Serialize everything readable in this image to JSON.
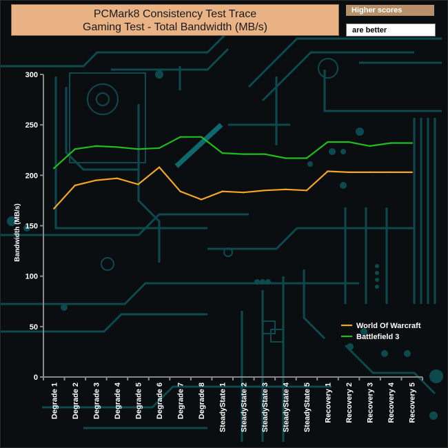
{
  "header": {
    "title_line1": "PCMark8 Consistency Test Trace",
    "title_line2": "Gaming Test - Total Bandwidth (MB/s)",
    "badge_top": "Higher scores",
    "badge_bottom": "are better"
  },
  "chart_data": {
    "type": "line",
    "title": "PCMark8 Consistency Test Trace Gaming Test - Total Bandwidth (MB/s)",
    "ylabel": "Bandwidth (MB/s)",
    "xlabel": "",
    "ylim": [
      0,
      300
    ],
    "yticks": [
      0,
      50,
      100,
      150,
      200,
      250,
      300
    ],
    "categories": [
      "Degrade 1",
      "Degrade 2",
      "Degrade 3",
      "Degrade 4",
      "Degrade 5",
      "Degrade 6",
      "Degrade 7",
      "Degrade 8",
      "SteadyState 1",
      "SteadyState 2",
      "SteadyState 3",
      "SteadyState 4",
      "SteadyState 5",
      "Recovery 1",
      "Recovery 2",
      "Recovery 3",
      "Recovery 4",
      "Recovery 5"
    ],
    "series": [
      {
        "name": "World Of Warcraft",
        "color": "#f5a623",
        "values": [
          167,
          190,
          195,
          197,
          191,
          208,
          184,
          176,
          184,
          183,
          185,
          186,
          185,
          204,
          203,
          203,
          203,
          203
        ]
      },
      {
        "name": "Battlefield 3",
        "color": "#1fbf1f",
        "values": [
          207,
          226,
          229,
          228,
          226,
          227,
          238,
          238,
          222,
          221,
          221,
          217,
          217,
          233,
          233,
          229,
          232,
          232
        ]
      }
    ],
    "grid": false,
    "legend_position": "bottom-right"
  }
}
